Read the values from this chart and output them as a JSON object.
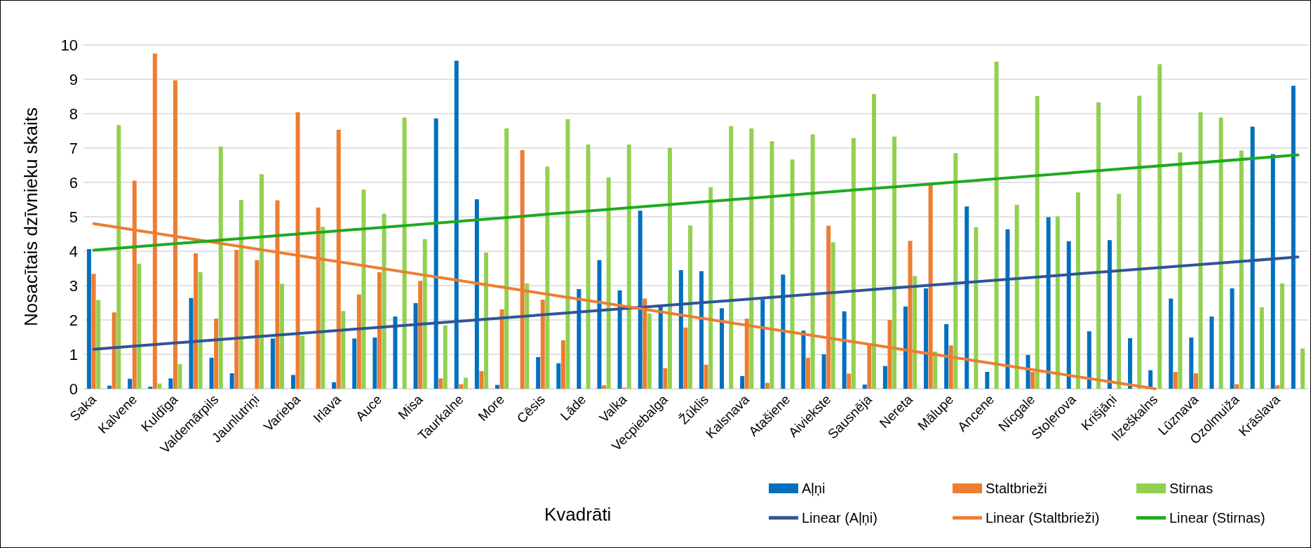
{
  "chart_data": {
    "type": "bar",
    "xlabel": "Kvadrāti",
    "ylabel": "Nosacītais dzīvnieku skaits",
    "categories": [
      "Saka",
      null,
      "Kalvene",
      null,
      "Kuldīga",
      null,
      "Valdemārpils",
      null,
      "Jaunlutriņi",
      null,
      "Varieba",
      null,
      "Irlava",
      null,
      "Auce",
      null,
      "Misa",
      null,
      "Taurkalne",
      null,
      "More",
      null,
      "Cēsis",
      null,
      "Lāde",
      null,
      "Valka",
      null,
      "Vecpiebalga",
      null,
      "Žūklis",
      null,
      "Kalsnava",
      null,
      "Atašiene",
      null,
      "Aiviekste",
      null,
      "Sausnēja",
      null,
      "Nereta",
      null,
      "Mālupe",
      null,
      "Ancene",
      null,
      "Nīcgale",
      null,
      "Stoļerova",
      null,
      "Krišjāņi",
      null,
      "Ilzeškalns",
      null,
      "Lūznava",
      null,
      "Ozolmuiža",
      null,
      "Krāslava",
      null
    ],
    "series": [
      {
        "name": "Aļņi",
        "color": "#0070c0",
        "values": [
          4.06,
          0.09,
          0.29,
          0.06,
          0.3,
          2.64,
          0.9,
          0.45,
          0,
          1.46,
          0.4,
          0,
          0.19,
          1.46,
          1.49,
          2.1,
          2.49,
          7.86,
          9.54,
          5.51,
          0.11,
          0,
          0.92,
          0.74,
          2.9,
          3.74,
          2.86,
          5.18,
          2.39,
          3.45,
          3.42,
          2.34,
          0.37,
          2.6,
          3.32,
          1.69,
          1.0,
          2.25,
          0.12,
          0.66,
          2.39,
          2.92,
          1.88,
          5.3,
          0.49,
          4.64,
          0.98,
          4.99,
          4.29,
          1.67,
          4.32,
          1.47,
          0.54,
          2.62,
          1.49,
          2.1,
          2.92,
          7.62,
          6.82,
          8.81
        ]
      },
      {
        "name": "Staltbrieži",
        "color": "#ed7d31",
        "values": [
          3.34,
          2.22,
          6.05,
          9.75,
          8.97,
          3.94,
          2.04,
          4.04,
          3.74,
          5.48,
          8.04,
          5.27,
          7.53,
          2.74,
          3.39,
          0,
          3.14,
          0.3,
          0.13,
          0.51,
          2.31,
          6.94,
          2.59,
          1.41,
          0,
          0.1,
          0.03,
          2.62,
          0.6,
          1.78,
          0.7,
          0,
          2.04,
          0.17,
          0,
          0.9,
          4.74,
          0.44,
          1.3,
          2.0,
          4.3,
          5.92,
          1.26,
          0,
          0,
          0,
          0.49,
          0,
          0,
          0,
          0,
          0,
          0,
          0.49,
          0.45,
          0,
          0.13,
          0,
          0.1,
          0
        ]
      },
      {
        "name": "Stirnas",
        "color": "#92d050",
        "values": [
          2.58,
          7.67,
          3.64,
          0.15,
          0.72,
          3.39,
          7.04,
          5.49,
          6.24,
          3.05,
          1.54,
          4.71,
          2.26,
          5.79,
          5.09,
          7.89,
          4.35,
          1.84,
          0.32,
          3.96,
          7.57,
          3.06,
          6.46,
          7.84,
          7.1,
          6.15,
          7.1,
          2.19,
          7.01,
          4.75,
          5.86,
          7.64,
          7.57,
          7.2,
          6.67,
          7.4,
          4.26,
          7.29,
          8.57,
          7.33,
          3.28,
          1.08,
          6.85,
          4.7,
          9.51,
          5.35,
          8.51,
          5.01,
          5.71,
          8.33,
          5.67,
          8.52,
          9.44,
          6.87,
          8.04,
          7.89,
          6.93,
          2.37,
          3.06,
          1.17
        ]
      },
      {
        "name": "Linear (Aļņi)",
        "type": "line",
        "color": "#2f5597",
        "values": [
          1.15,
          null,
          null,
          null,
          null,
          null,
          null,
          null,
          null,
          null,
          null,
          null,
          null,
          null,
          null,
          null,
          null,
          null,
          null,
          null,
          null,
          null,
          null,
          null,
          null,
          null,
          null,
          null,
          null,
          null,
          null,
          null,
          null,
          null,
          null,
          null,
          null,
          null,
          null,
          null,
          null,
          null,
          null,
          null,
          null,
          null,
          null,
          null,
          null,
          null,
          null,
          null,
          null,
          null,
          null,
          null,
          null,
          null,
          null,
          3.83
        ]
      },
      {
        "name": "Linear (Staltbrieži)",
        "type": "line",
        "color": "#ed7d31",
        "values": [
          4.8,
          null,
          null,
          null,
          null,
          null,
          null,
          null,
          null,
          null,
          null,
          null,
          null,
          null,
          null,
          null,
          null,
          null,
          null,
          null,
          null,
          null,
          null,
          null,
          null,
          null,
          null,
          null,
          null,
          null,
          null,
          null,
          null,
          null,
          null,
          null,
          null,
          null,
          null,
          null,
          null,
          null,
          null,
          null,
          null,
          null,
          null,
          null,
          null,
          null,
          null,
          null,
          0,
          null,
          null,
          null,
          null,
          null,
          null,
          null
        ]
      },
      {
        "name": "Linear (Stirnas)",
        "type": "line",
        "color": "#1faa1f",
        "values": [
          4.03,
          null,
          null,
          null,
          null,
          null,
          null,
          null,
          null,
          null,
          null,
          null,
          null,
          null,
          null,
          null,
          null,
          null,
          null,
          null,
          null,
          null,
          null,
          null,
          null,
          null,
          null,
          null,
          null,
          null,
          null,
          null,
          null,
          null,
          null,
          null,
          null,
          null,
          null,
          null,
          null,
          null,
          null,
          null,
          null,
          null,
          null,
          null,
          null,
          null,
          null,
          null,
          null,
          null,
          null,
          null,
          null,
          null,
          null,
          6.8
        ]
      }
    ],
    "ylim": [
      0,
      10
    ],
    "yticks": [
      0,
      1,
      2,
      3,
      4,
      5,
      6,
      7,
      8,
      9,
      10
    ],
    "grid": "y",
    "legend": "bottom right",
    "marker": "none"
  }
}
